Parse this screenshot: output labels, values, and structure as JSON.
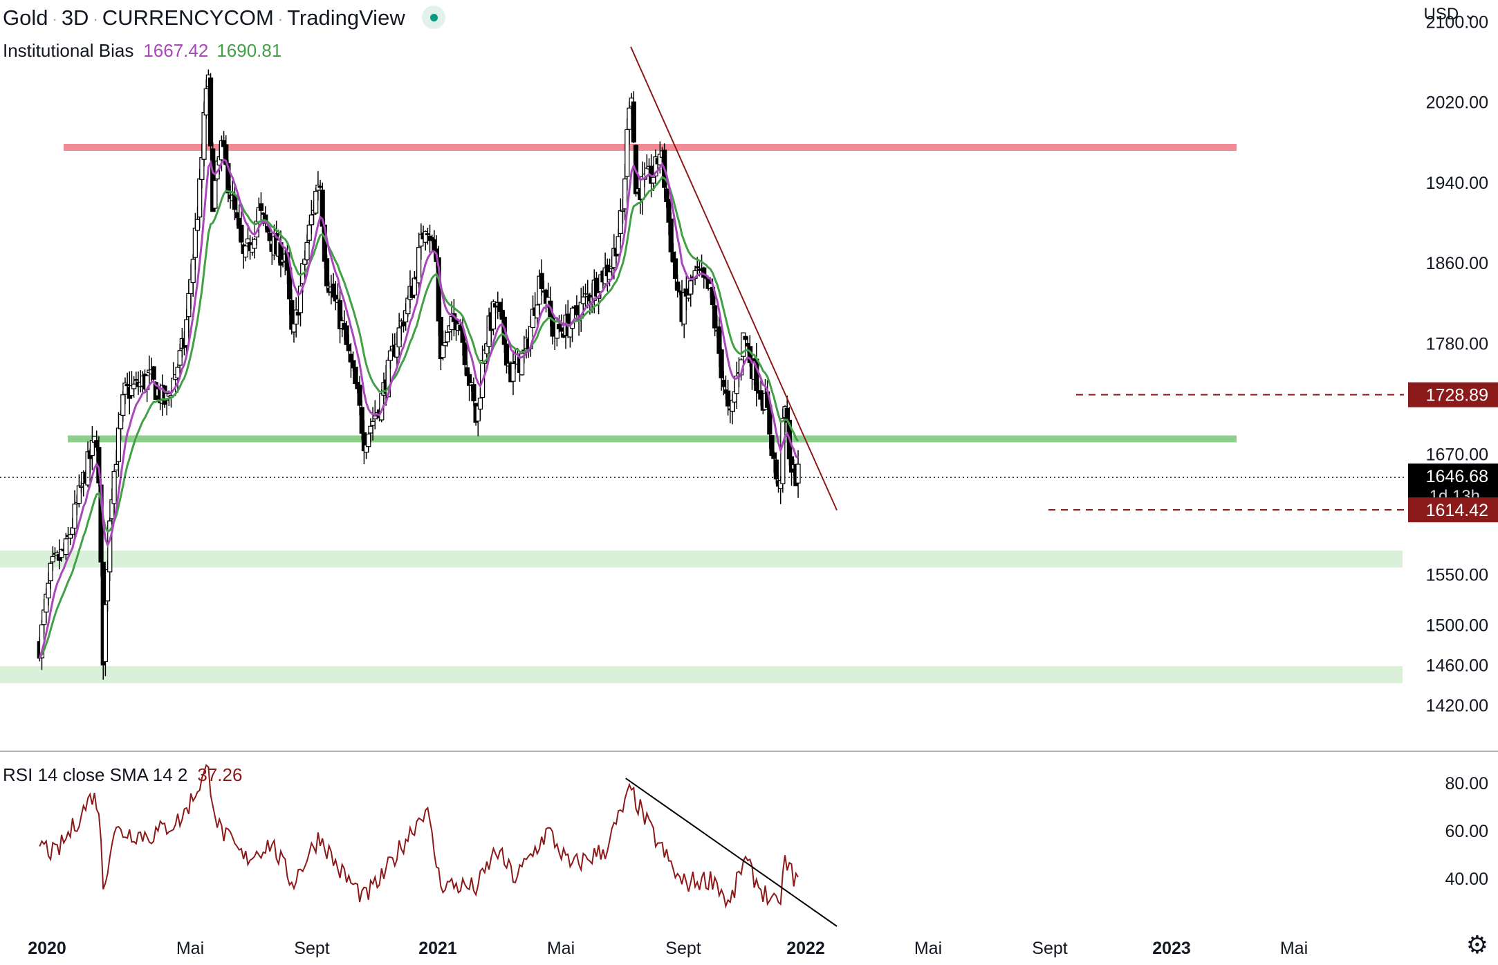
{
  "header": {
    "symbol": "Gold",
    "interval": "3D",
    "exchange": "CURRENCYCOM",
    "platform": "TradingView",
    "currency": "USD"
  },
  "indicator": {
    "name": "Institutional Bias",
    "value1": "1667.42",
    "value2": "1690.81",
    "color1": "#ab47bc",
    "color2": "#43a047"
  },
  "rsi": {
    "legend": "RSI 14 close SMA 14 2",
    "value": "37.26",
    "color": "#8b1a1a",
    "y_ticks": [
      "80.00",
      "60.00",
      "40.00"
    ]
  },
  "price_axis": {
    "ticks": [
      "2100.00",
      "2020.00",
      "1940.00",
      "1860.00",
      "1780.00",
      "1670.00",
      "1550.00",
      "1500.00",
      "1460.00",
      "1420.00"
    ],
    "labels": [
      {
        "text": "1728.89",
        "value": 1728.89,
        "color": "#8b1a1a"
      },
      {
        "text": "1646.68",
        "sub": "1d 13h",
        "value": 1646.68,
        "color": "#000000"
      },
      {
        "text": "1614.42",
        "value": 1614.42,
        "color": "#8b1a1a"
      }
    ]
  },
  "time_axis": [
    {
      "label": "2020",
      "bold": true
    },
    {
      "label": "Mai",
      "bold": false
    },
    {
      "label": "Sept",
      "bold": false
    },
    {
      "label": "2021",
      "bold": true
    },
    {
      "label": "Mai",
      "bold": false
    },
    {
      "label": "Sept",
      "bold": false
    },
    {
      "label": "2022",
      "bold": true
    },
    {
      "label": "Mai",
      "bold": false
    },
    {
      "label": "Sept",
      "bold": false
    },
    {
      "label": "2023",
      "bold": true
    },
    {
      "label": "Mai",
      "bold": false
    }
  ],
  "chart_data": {
    "type": "candlestick",
    "title": "Gold · 3D · CURRENCYCOM",
    "y_range": [
      1390,
      2130
    ],
    "x_range": [
      "2019-12",
      "2023-06"
    ],
    "price_path": [
      [
        "2019-12-20",
        1480
      ],
      [
        "2020-01-05",
        1555
      ],
      [
        "2020-01-25",
        1575
      ],
      [
        "2020-02-20",
        1650
      ],
      [
        "2020-03-08",
        1690
      ],
      [
        "2020-03-16",
        1470
      ],
      [
        "2020-03-26",
        1625
      ],
      [
        "2020-04-14",
        1730
      ],
      [
        "2020-05-18",
        1745
      ],
      [
        "2020-06-10",
        1720
      ],
      [
        "2020-07-05",
        1780
      ],
      [
        "2020-07-27",
        1940
      ],
      [
        "2020-08-06",
        2060
      ],
      [
        "2020-08-12",
        1920
      ],
      [
        "2020-08-25",
        1975
      ],
      [
        "2020-09-25",
        1860
      ],
      [
        "2020-10-15",
        1910
      ],
      [
        "2020-11-09",
        1870
      ],
      [
        "2020-11-20",
        1870
      ],
      [
        "2020-11-30",
        1780
      ],
      [
        "2020-12-20",
        1880
      ],
      [
        "2021-01-06",
        1950
      ],
      [
        "2021-01-15",
        1850
      ],
      [
        "2021-02-05",
        1800
      ],
      [
        "2021-02-26",
        1730
      ],
      [
        "2021-03-08",
        1685
      ],
      [
        "2021-03-30",
        1720
      ],
      [
        "2021-04-20",
        1780
      ],
      [
        "2021-05-15",
        1840
      ],
      [
        "2021-06-01",
        1905
      ],
      [
        "2021-06-15",
        1860
      ],
      [
        "2021-06-20",
        1770
      ],
      [
        "2021-07-15",
        1810
      ],
      [
        "2021-08-09",
        1700
      ],
      [
        "2021-08-20",
        1780
      ],
      [
        "2021-09-05",
        1820
      ],
      [
        "2021-09-25",
        1750
      ],
      [
        "2021-10-15",
        1770
      ],
      [
        "2021-11-05",
        1850
      ],
      [
        "2021-11-22",
        1790
      ],
      [
        "2021-12-15",
        1800
      ],
      [
        "2022-01-20",
        1840
      ],
      [
        "2022-02-10",
        1860
      ],
      [
        "2022-02-25",
        1910
      ],
      [
        "2022-03-08",
        2050
      ],
      [
        "2022-03-15",
        1930
      ],
      [
        "2022-04-10",
        1950
      ],
      [
        "2022-04-18",
        1975
      ],
      [
        "2022-05-05",
        1860
      ],
      [
        "2022-05-16",
        1810
      ],
      [
        "2022-06-05",
        1850
      ],
      [
        "2022-06-25",
        1830
      ],
      [
        "2022-07-21",
        1700
      ],
      [
        "2022-08-10",
        1790
      ],
      [
        "2022-08-20",
        1760
      ],
      [
        "2022-09-10",
        1715
      ],
      [
        "2022-09-27",
        1625
      ],
      [
        "2022-10-04",
        1720
      ],
      [
        "2022-10-15",
        1650
      ],
      [
        "2022-10-25",
        1646.68
      ]
    ],
    "institutional_bias_fast_last": 1667.42,
    "institutional_bias_slow_last": 1690.81,
    "horizontal_levels": [
      {
        "type": "resistance",
        "value": 1975,
        "color": "#f28b95"
      },
      {
        "type": "support",
        "value": 1685,
        "color": "#8ecf8e"
      },
      {
        "type": "zone",
        "from": 1557,
        "to": 1574,
        "color": "#d9f0d9"
      },
      {
        "type": "zone",
        "from": 1442,
        "to": 1459,
        "color": "#d9f0d9"
      }
    ],
    "dashed_levels": [
      1728.89,
      1614.42
    ],
    "last_price": 1646.68,
    "trendline": {
      "from": [
        "2022-03-08",
        2075
      ],
      "to": [
        "2022-12-15",
        1614
      ]
    },
    "rsi_path": [
      [
        "2019-12-20",
        55
      ],
      [
        "2020-01-10",
        50
      ],
      [
        "2020-02-01",
        60
      ],
      [
        "2020-03-01",
        75
      ],
      [
        "2020-03-10",
        70
      ],
      [
        "2020-03-16",
        36
      ],
      [
        "2020-03-30",
        60
      ],
      [
        "2020-05-20",
        58
      ],
      [
        "2020-07-01",
        65
      ],
      [
        "2020-08-06",
        86
      ],
      [
        "2020-08-20",
        62
      ],
      [
        "2020-09-25",
        48
      ],
      [
        "2020-11-01",
        55
      ],
      [
        "2020-11-30",
        38
      ],
      [
        "2021-01-06",
        58
      ],
      [
        "2021-02-01",
        44
      ],
      [
        "2021-03-08",
        32
      ],
      [
        "2021-04-01",
        40
      ],
      [
        "2021-05-01",
        55
      ],
      [
        "2021-06-01",
        70
      ],
      [
        "2021-06-20",
        38
      ],
      [
        "2021-08-09",
        36
      ],
      [
        "2021-09-05",
        52
      ],
      [
        "2021-10-01",
        40
      ],
      [
        "2021-11-15",
        60
      ],
      [
        "2021-12-15",
        45
      ],
      [
        "2022-02-01",
        52
      ],
      [
        "2022-03-08",
        77
      ],
      [
        "2022-04-01",
        62
      ],
      [
        "2022-05-16",
        38
      ],
      [
        "2022-07-01",
        40
      ],
      [
        "2022-07-21",
        28
      ],
      [
        "2022-08-10",
        48
      ],
      [
        "2022-09-01",
        36
      ],
      [
        "2022-09-27",
        27
      ],
      [
        "2022-10-04",
        47
      ],
      [
        "2022-10-25",
        37.26
      ]
    ],
    "rsi_trendline": {
      "from": [
        "2022-03-01",
        82
      ],
      "to": [
        "2022-12-15",
        20
      ]
    },
    "rsi_last": 37.26,
    "rsi_range": [
      15,
      90
    ]
  }
}
